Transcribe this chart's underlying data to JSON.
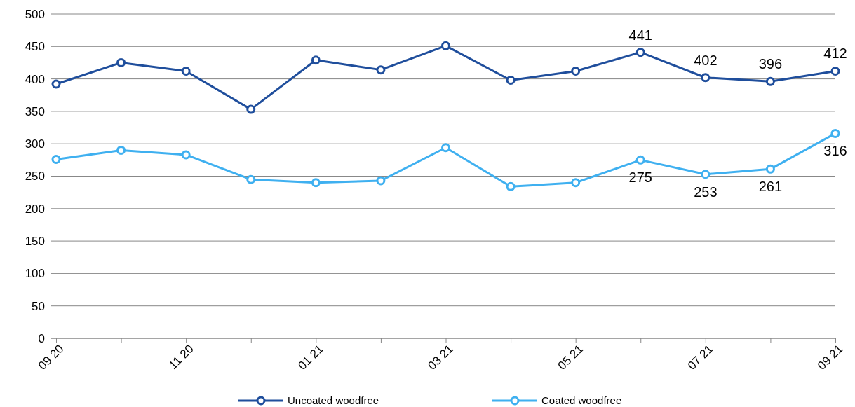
{
  "chart_data": {
    "type": "line",
    "categories": [
      "09 20",
      null,
      "11 20",
      null,
      "01 21",
      null,
      "03 21",
      null,
      "05 21",
      null,
      "07 21",
      null,
      "09 21"
    ],
    "series": [
      {
        "name": "Uncoated woodfree",
        "color": "#1f4e9c",
        "values": [
          392,
          425,
          412,
          353,
          429,
          414,
          451,
          398,
          412,
          441,
          402,
          396,
          412
        ],
        "value_labels": [
          null,
          null,
          null,
          null,
          null,
          null,
          null,
          null,
          null,
          "441",
          "402",
          "396",
          "412"
        ]
      },
      {
        "name": "Coated woodfree",
        "color": "#3fb0f0",
        "values": [
          276,
          290,
          283,
          245,
          240,
          243,
          294,
          234,
          240,
          275,
          253,
          261,
          316
        ],
        "value_labels": [
          null,
          null,
          null,
          null,
          null,
          null,
          null,
          null,
          null,
          "275",
          "253",
          "261",
          "316"
        ]
      }
    ],
    "ylim": [
      0,
      500
    ],
    "yticks": [
      0,
      50,
      100,
      150,
      200,
      250,
      300,
      350,
      400,
      450,
      500
    ],
    "grid": "y",
    "legend": "bottom",
    "marker": "circle",
    "line_style": "solid"
  }
}
